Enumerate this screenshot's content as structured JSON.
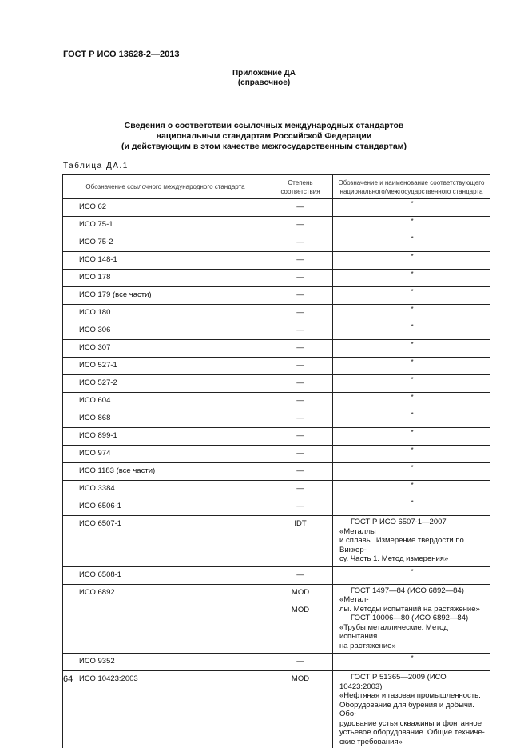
{
  "header": {
    "doc_id": "ГОСТ Р ИСО 13628-2—2013"
  },
  "appendix": {
    "title": "Приложение ДА",
    "subtitle": "(справочное)"
  },
  "title_lines": [
    "Сведения о соответствии ссылочных международных стандартов",
    "национальным стандартам Российской Федерации",
    "(и действующим в этом качестве межгосударственным стандартам)"
  ],
  "table_label": "Таблица ДА.1",
  "table": {
    "columns": [
      "Обозначение ссылочного международного стандарта",
      "Степень соответствия",
      "Обозначение и наименование соответствующего национального/межгосударственного стандарта"
    ],
    "rows": [
      {
        "ref": "ИСО 62",
        "degree": [
          "—"
        ],
        "national": [
          "*"
        ]
      },
      {
        "ref": "ИСО 75-1",
        "degree": [
          "—"
        ],
        "national": [
          "*"
        ]
      },
      {
        "ref": "ИСО 75-2",
        "degree": [
          "—"
        ],
        "national": [
          "*"
        ]
      },
      {
        "ref": "ИСО 148-1",
        "degree": [
          "—"
        ],
        "national": [
          "*"
        ]
      },
      {
        "ref": "ИСО 178",
        "degree": [
          "—"
        ],
        "national": [
          "*"
        ]
      },
      {
        "ref": "ИСО 179 (все части)",
        "degree": [
          "—"
        ],
        "national": [
          "*"
        ]
      },
      {
        "ref": "ИСО 180",
        "degree": [
          "—"
        ],
        "national": [
          "*"
        ]
      },
      {
        "ref": "ИСО 306",
        "degree": [
          "—"
        ],
        "national": [
          "*"
        ]
      },
      {
        "ref": "ИСО 307",
        "degree": [
          "—"
        ],
        "national": [
          "*"
        ]
      },
      {
        "ref": "ИСО 527-1",
        "degree": [
          "—"
        ],
        "national": [
          "*"
        ]
      },
      {
        "ref": "ИСО 527-2",
        "degree": [
          "—"
        ],
        "national": [
          "*"
        ]
      },
      {
        "ref": "ИСО 604",
        "degree": [
          "—"
        ],
        "national": [
          "*"
        ]
      },
      {
        "ref": "ИСО 868",
        "degree": [
          "—"
        ],
        "national": [
          "*"
        ]
      },
      {
        "ref": "ИСО 899-1",
        "degree": [
          "—"
        ],
        "national": [
          "*"
        ]
      },
      {
        "ref": "ИСО 974",
        "degree": [
          "—"
        ],
        "national": [
          "*"
        ]
      },
      {
        "ref": "ИСО 1183 (все части)",
        "degree": [
          "—"
        ],
        "national": [
          "*"
        ]
      },
      {
        "ref": "ИСО 3384",
        "degree": [
          "—"
        ],
        "national": [
          "*"
        ]
      },
      {
        "ref": "ИСО 6506-1",
        "degree": [
          "—"
        ],
        "national": [
          "*"
        ]
      },
      {
        "ref": "ИСО 6507-1",
        "degree": [
          "IDT"
        ],
        "national": [
          "ГОСТ Р ИСО 6507-1—2007 «Металлы",
          "и сплавы. Измерение твердости по Виккер-",
          "су. Часть 1. Метод измерения»"
        ]
      },
      {
        "ref": "ИСО 6508-1",
        "degree": [
          "—"
        ],
        "national": [
          "*"
        ]
      },
      {
        "ref": "ИСО 6892",
        "degree": [
          "MOD",
          "MOD"
        ],
        "national": [
          "ГОСТ 1497—84 (ИСО 6892—84) «Метал-",
          "лы. Методы испытаний на растяжение»",
          "ГОСТ 10006—80 (ИСО 6892—84)",
          "«Трубы металлические. Метод испытания",
          "на растяжение»"
        ]
      },
      {
        "ref": "ИСО 9352",
        "degree": [
          "—"
        ],
        "national": [
          "*"
        ]
      },
      {
        "ref": "ИСО 10423:2003",
        "degree": [
          "MOD"
        ],
        "national": [
          "ГОСТ Р 51365—2009 (ИСО 10423:2003)",
          "«Нефтяная и газовая промышленность.",
          "Оборудование для бурения и добычи. Обо-",
          "рудование устья скважины и фонтанное",
          "устьевое оборудование. Общие техниче-",
          "ские требования»"
        ]
      }
    ]
  },
  "footer": {
    "page_number": "64"
  }
}
